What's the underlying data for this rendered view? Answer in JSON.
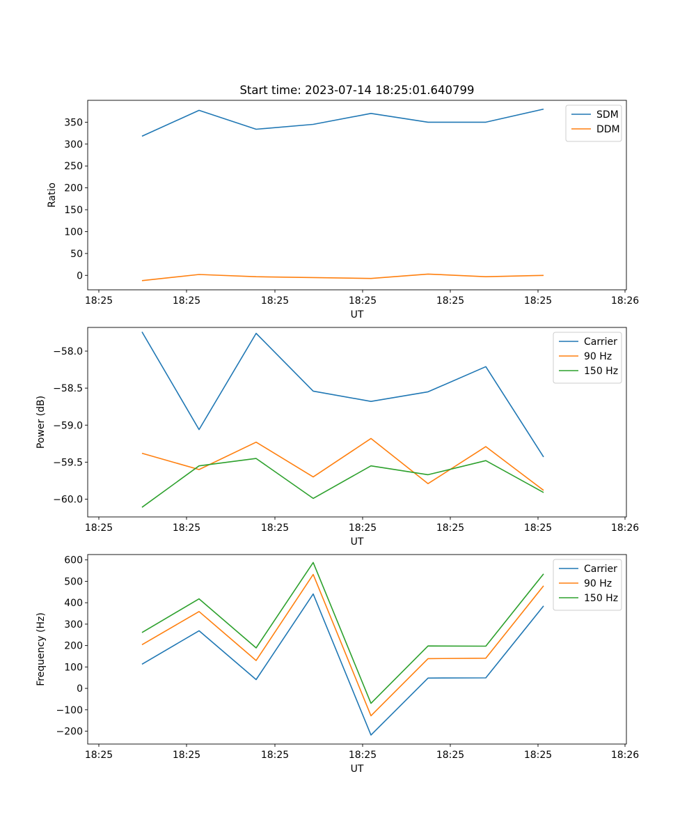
{
  "chart_data": [
    {
      "type": "line",
      "title": "Start time: 2023-07-14 18:25:01.640799",
      "xlabel": "UT",
      "ylabel": "Ratio",
      "x_tick_labels": [
        "18:25",
        "18:25",
        "18:25",
        "18:25",
        "18:25",
        "18:25",
        "18:26"
      ],
      "yticks": [
        0,
        50,
        100,
        150,
        200,
        250,
        300,
        350
      ],
      "ylim": [
        -33,
        400
      ],
      "legend_position": "top-right",
      "series": [
        {
          "name": "SDM",
          "color": "#1f77b4",
          "values": [
            318,
            377,
            334,
            345,
            370,
            350,
            350,
            380
          ]
        },
        {
          "name": "DDM",
          "color": "#ff7f0e",
          "values": [
            -12,
            2,
            -3,
            -5,
            -7,
            3,
            -3,
            0
          ]
        }
      ]
    },
    {
      "type": "line",
      "title": "",
      "xlabel": "UT",
      "ylabel": "Power (dB)",
      "x_tick_labels": [
        "18:25",
        "18:25",
        "18:25",
        "18:25",
        "18:25",
        "18:25",
        "18:26"
      ],
      "yticks": [
        -60.0,
        -59.5,
        -59.0,
        -58.5,
        -58.0
      ],
      "ytick_labels": [
        "−60.0",
        "−59.5",
        "−59.0",
        "−58.5",
        "−58.0"
      ],
      "ylim": [
        -60.24,
        -57.68
      ],
      "legend_position": "top-right",
      "series": [
        {
          "name": "Carrier",
          "color": "#1f77b4",
          "values": [
            -57.74,
            -59.06,
            -57.76,
            -58.54,
            -58.68,
            -58.55,
            -58.21,
            -59.43
          ]
        },
        {
          "name": "90 Hz",
          "color": "#ff7f0e",
          "values": [
            -59.38,
            -59.6,
            -59.23,
            -59.7,
            -59.18,
            -59.79,
            -59.29,
            -59.88
          ]
        },
        {
          "name": "150 Hz",
          "color": "#2ca02c",
          "values": [
            -60.11,
            -59.55,
            -59.45,
            -59.99,
            -59.55,
            -59.67,
            -59.48,
            -59.91
          ]
        }
      ]
    },
    {
      "type": "line",
      "title": "",
      "xlabel": "UT",
      "ylabel": "Frequency (Hz)",
      "x_tick_labels": [
        "18:25",
        "18:25",
        "18:25",
        "18:25",
        "18:25",
        "18:25",
        "18:26"
      ],
      "yticks": [
        -200,
        -100,
        0,
        100,
        200,
        300,
        400,
        500,
        600
      ],
      "ytick_labels": [
        "−200",
        "−100",
        "0",
        "100",
        "200",
        "300",
        "400",
        "500",
        "600"
      ],
      "ylim": [
        -260,
        625
      ],
      "legend_position": "top-right",
      "series": [
        {
          "name": "Carrier",
          "color": "#1f77b4",
          "values": [
            113,
            269,
            41,
            441,
            -218,
            48,
            49,
            385
          ]
        },
        {
          "name": "90 Hz",
          "color": "#ff7f0e",
          "values": [
            204,
            359,
            130,
            532,
            -128,
            139,
            141,
            479
          ]
        },
        {
          "name": "150 Hz",
          "color": "#2ca02c",
          "values": [
            261,
            418,
            189,
            588,
            -70,
            198,
            197,
            535
          ]
        }
      ]
    }
  ]
}
